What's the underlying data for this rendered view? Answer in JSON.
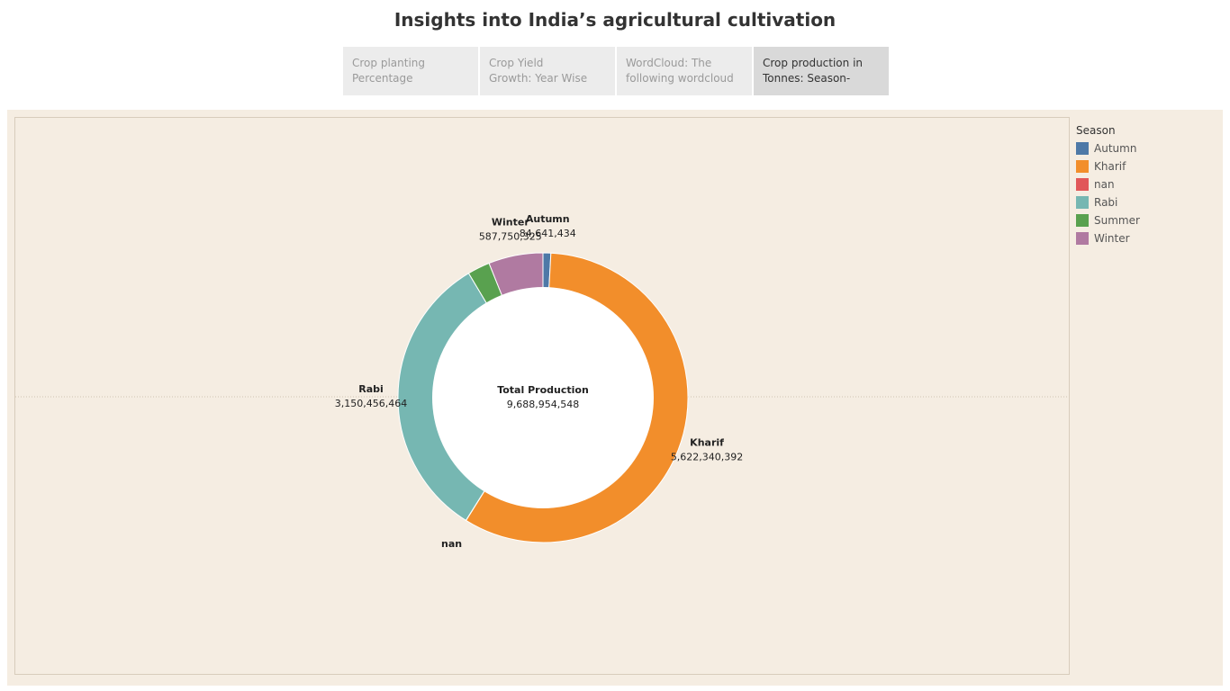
{
  "story": {
    "title": "Insights into India’s agricultural cultivation",
    "tabs": [
      {
        "label": "Crop planting Percentage",
        "active": false
      },
      {
        "label": "Crop Yield       Growth: Year Wise",
        "active": false
      },
      {
        "label": "WordCloud: The following wordcloud ..",
        "active": false
      },
      {
        "label": "Crop production in Tonnes: Season-prod..",
        "active": true
      }
    ]
  },
  "legend": {
    "title": "Season",
    "items": [
      {
        "label": "Autumn",
        "color": "#4e79a7"
      },
      {
        "label": "Kharif",
        "color": "#f28e2b"
      },
      {
        "label": "nan",
        "color": "#e15759"
      },
      {
        "label": "Rabi",
        "color": "#76b7b2"
      },
      {
        "label": "Summer",
        "color": "#59a14f"
      },
      {
        "label": "Winter",
        "color": "#b07aa1"
      }
    ]
  },
  "chart_data": {
    "type": "pie",
    "variant": "donut",
    "center_label": "Total Production",
    "center_value": "9,688,954,548",
    "total": 9688954548,
    "slices": [
      {
        "name": "Autumn",
        "value": 84641434,
        "label": "84,641,434",
        "color": "#4e79a7",
        "show_label": true,
        "show_value": true
      },
      {
        "name": "Kharif",
        "value": 5622340392,
        "label": "5,622,340,392",
        "color": "#f28e2b",
        "show_label": true,
        "show_value": true
      },
      {
        "name": "nan",
        "value": 2000000,
        "label": "",
        "color": "#e15759",
        "show_label": true,
        "show_value": false
      },
      {
        "name": "Rabi",
        "value": 3150456464,
        "label": "3,150,456,464",
        "color": "#76b7b2",
        "show_label": true,
        "show_value": true
      },
      {
        "name": "Summer",
        "value": 241764000,
        "label": "",
        "color": "#59a14f",
        "show_label": false,
        "show_value": false
      },
      {
        "name": "Winter",
        "value": 587750325,
        "label": "587,750,325",
        "color": "#b07aa1",
        "show_label": true,
        "show_value": true
      }
    ]
  }
}
